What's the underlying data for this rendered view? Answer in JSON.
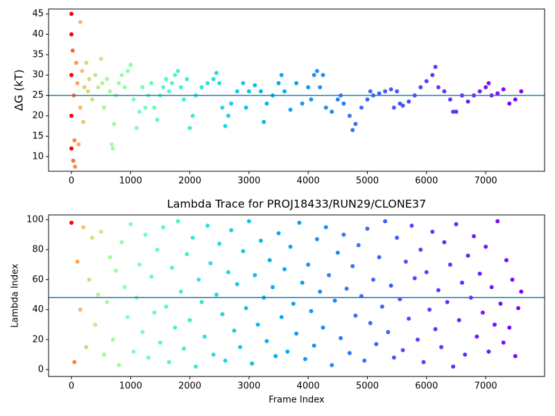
{
  "chart_data": [
    {
      "type": "scatter",
      "ylabel": "ΔG (kT)",
      "colormap": "rainbow_r",
      "x": [
        0,
        0,
        0,
        0,
        0,
        20,
        30,
        40,
        50,
        60,
        80,
        100,
        120,
        150,
        150,
        180,
        200,
        220,
        250,
        280,
        300,
        350,
        400,
        450,
        500,
        520,
        550,
        600,
        650,
        680,
        700,
        720,
        750,
        800,
        850,
        900,
        950,
        1000,
        1050,
        1100,
        1150,
        1200,
        1250,
        1300,
        1350,
        1400,
        1450,
        1500,
        1550,
        1600,
        1650,
        1700,
        1750,
        1800,
        1850,
        1900,
        1950,
        2000,
        2050,
        2100,
        2200,
        2300,
        2400,
        2450,
        2500,
        2550,
        2600,
        2650,
        2700,
        2800,
        2900,
        2950,
        3000,
        3100,
        3200,
        3250,
        3300,
        3400,
        3500,
        3550,
        3600,
        3700,
        3800,
        3900,
        4000,
        4050,
        4100,
        4150,
        4200,
        4250,
        4300,
        4400,
        4500,
        4550,
        4600,
        4700,
        4750,
        4800,
        4900,
        5000,
        5050,
        5100,
        5200,
        5300,
        5400,
        5450,
        5500,
        5550,
        5600,
        5700,
        5800,
        5900,
        6000,
        6100,
        6150,
        6200,
        6300,
        6400,
        6450,
        6500,
        6600,
        6700,
        6800,
        6900,
        7000,
        7050,
        7100,
        7200,
        7300,
        7400,
        7500,
        7600
      ],
      "y": [
        45,
        40,
        30,
        20,
        12,
        36,
        9,
        25,
        14,
        7.5,
        33,
        28,
        13,
        43,
        22,
        31,
        18.5,
        27,
        33,
        26,
        29,
        24,
        30,
        27,
        34,
        28,
        22,
        29,
        26,
        13,
        12,
        18,
        25,
        28,
        30,
        27,
        31,
        32.5,
        24,
        17,
        21,
        27,
        22,
        25,
        28,
        22,
        19,
        25,
        27,
        29,
        26,
        28,
        30,
        31,
        27,
        24,
        29,
        17,
        20,
        25,
        27,
        28,
        29,
        30.5,
        28,
        22,
        17.5,
        20,
        23,
        26,
        28,
        22,
        26,
        27.5,
        26,
        18.5,
        23,
        25,
        28,
        30,
        26,
        21.5,
        28,
        23,
        27,
        24,
        30,
        31,
        27,
        30,
        22,
        21,
        24,
        25,
        23,
        20,
        16.5,
        18,
        22,
        24,
        26,
        25,
        25.5,
        26,
        26.5,
        22,
        26,
        23,
        22.5,
        23.5,
        25,
        27,
        28.5,
        30,
        32,
        27,
        26,
        24,
        21,
        21,
        25,
        23.5,
        25,
        26,
        27,
        28,
        25,
        25.5,
        26.5,
        23,
        24,
        26
      ],
      "hline": 25,
      "hline_color": "#1f77b4",
      "xlim": [
        -387,
        7995
      ],
      "ylim": [
        6.4,
        46.2
      ],
      "xticks": [
        0,
        1000,
        2000,
        3000,
        4000,
        5000,
        6000,
        7000
      ],
      "yticks": [
        10,
        15,
        20,
        25,
        30,
        35,
        40,
        45
      ]
    },
    {
      "type": "scatter",
      "title": "Lambda Trace for PROJ18433/RUN29/CLONE37",
      "xlabel": "Frame Index",
      "ylabel": "Lambda Index",
      "colormap": "rainbow_r",
      "x": [
        0,
        50,
        100,
        150,
        200,
        250,
        300,
        350,
        400,
        450,
        500,
        550,
        600,
        650,
        700,
        750,
        800,
        850,
        900,
        950,
        1000,
        1050,
        1100,
        1150,
        1200,
        1250,
        1300,
        1350,
        1400,
        1450,
        1500,
        1550,
        1600,
        1650,
        1700,
        1750,
        1800,
        1850,
        1900,
        1950,
        2000,
        2050,
        2100,
        2150,
        2200,
        2250,
        2300,
        2350,
        2400,
        2450,
        2500,
        2550,
        2600,
        2650,
        2700,
        2750,
        2800,
        2850,
        2900,
        2950,
        3000,
        3050,
        3100,
        3150,
        3200,
        3250,
        3300,
        3350,
        3400,
        3450,
        3500,
        3550,
        3600,
        3650,
        3700,
        3750,
        3800,
        3850,
        3900,
        3950,
        4000,
        4050,
        4100,
        4150,
        4200,
        4250,
        4300,
        4350,
        4400,
        4450,
        4500,
        4550,
        4600,
        4650,
        4700,
        4750,
        4800,
        4850,
        4900,
        4950,
        5000,
        5050,
        5100,
        5150,
        5200,
        5250,
        5300,
        5350,
        5400,
        5450,
        5500,
        5550,
        5600,
        5650,
        5700,
        5750,
        5800,
        5850,
        5900,
        5950,
        6000,
        6050,
        6100,
        6150,
        6200,
        6250,
        6300,
        6350,
        6400,
        6450,
        6500,
        6550,
        6600,
        6650,
        6700,
        6750,
        6800,
        6850,
        6900,
        6950,
        7000,
        7050,
        7100,
        7150,
        7200,
        7250,
        7300,
        7350,
        7400,
        7450,
        7500,
        7550,
        7600
      ],
      "y": [
        98,
        5,
        72,
        40,
        95,
        15,
        60,
        88,
        30,
        50,
        92,
        10,
        45,
        75,
        20,
        66,
        3,
        85,
        55,
        35,
        97,
        12,
        48,
        70,
        25,
        90,
        8,
        62,
        38,
        80,
        18,
        95,
        42,
        5,
        68,
        28,
        99,
        52,
        14,
        77,
        33,
        88,
        2,
        60,
        45,
        22,
        96,
        71,
        10,
        50,
        84,
        37,
        6,
        65,
        93,
        26,
        57,
        15,
        79,
        41,
        99,
        4,
        63,
        30,
        86,
        48,
        19,
        73,
        55,
        9,
        91,
        35,
        67,
        12,
        82,
        44,
        24,
        98,
        58,
        7,
        70,
        39,
        16,
        87,
        52,
        28,
        95,
        63,
        3,
        46,
        78,
        21,
        90,
        54,
        11,
        69,
        36,
        83,
        49,
        6,
        94,
        31,
        60,
        17,
        75,
        42,
        99,
        25,
        56,
        8,
        88,
        47,
        13,
        72,
        34,
        96,
        61,
        20,
        80,
        5,
        65,
        40,
        92,
        27,
        53,
        15,
        85,
        45,
        70,
        2,
        97,
        33,
        58,
        10,
        76,
        48,
        89,
        22,
        64,
        38,
        82,
        12,
        55,
        30,
        99,
        44,
        18,
        73,
        28,
        60,
        9,
        41,
        52
      ],
      "hline": 48,
      "hline_color": "#1f77b4",
      "xlim": [
        -387,
        7995
      ],
      "ylim": [
        -4.6,
        103.2
      ],
      "xticks": [
        0,
        1000,
        2000,
        3000,
        4000,
        5000,
        6000,
        7000
      ],
      "yticks": [
        0,
        20,
        40,
        60,
        80,
        100
      ]
    }
  ]
}
